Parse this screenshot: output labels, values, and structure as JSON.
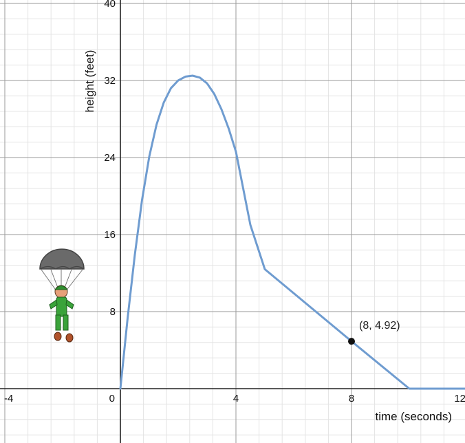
{
  "chart_data": {
    "type": "line",
    "xlabel": "time (seconds)",
    "ylabel": "height (feet)",
    "xlim": [
      -4,
      12
    ],
    "ylim": [
      -5.5,
      40
    ],
    "grid": true,
    "x_ticks": [
      -4,
      0,
      4,
      8,
      12
    ],
    "y_ticks": [
      8,
      16,
      24,
      32,
      40
    ],
    "series": [
      {
        "color": "#6f9cd0",
        "x": [
          0,
          0.25,
          0.5,
          0.75,
          1.0,
          1.25,
          1.5,
          1.75,
          2.0,
          2.25,
          2.5,
          2.75,
          3.0,
          3.25,
          3.5,
          3.75,
          4.0,
          4.25,
          4.5,
          5.0,
          8.0,
          10.0,
          12.0
        ],
        "y": [
          0,
          7.3,
          13.9,
          19.6,
          24.1,
          27.4,
          29.7,
          31.2,
          32.0,
          32.4,
          32.5,
          32.3,
          31.7,
          30.6,
          29.0,
          27.0,
          24.6,
          20.8,
          17.0,
          12.4,
          4.92,
          0,
          0
        ]
      }
    ],
    "highlight_point": {
      "x": 8,
      "y": 4.92,
      "label": "(8, 4.92)"
    },
    "decoration": "parachutist-icon"
  }
}
